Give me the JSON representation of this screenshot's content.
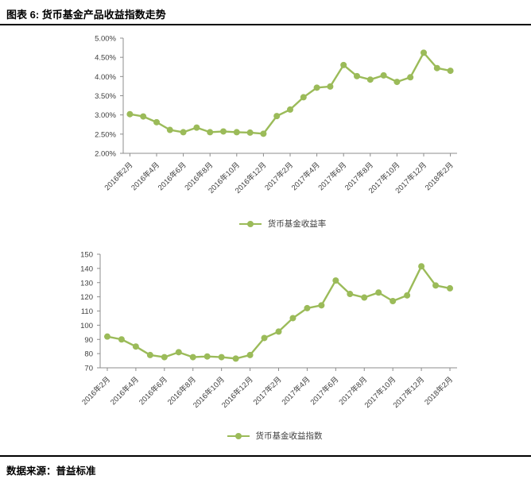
{
  "header": {
    "title": "图表 6: 货币基金产品收益指数走势"
  },
  "footer": {
    "source": "数据来源：普益标准"
  },
  "colors": {
    "line": "#9BBB59",
    "axis": "#8c8c8c",
    "tick_label": "#404040",
    "rule": "#000000"
  },
  "chart_data": [
    {
      "type": "line",
      "series_name": "货币基金收益率",
      "x": [
        "2016年2月",
        "2016年3月",
        "2016年4月",
        "2016年5月",
        "2016年6月",
        "2016年7月",
        "2016年8月",
        "2016年9月",
        "2016年10月",
        "2016年11月",
        "2016年12月",
        "2017年1月",
        "2017年2月",
        "2017年3月",
        "2017年4月",
        "2017年5月",
        "2017年6月",
        "2017年7月",
        "2017年8月",
        "2017年9月",
        "2017年10月",
        "2017年11月",
        "2017年12月",
        "2018年1月",
        "2018年2月"
      ],
      "x_label_every": 2,
      "x_tick_labels_shown": [
        "2016年2月",
        "2016年4月",
        "2016年6月",
        "2016年8月",
        "2016年10月",
        "2016年12月",
        "2017年2月",
        "2017年4月",
        "2017年6月",
        "2017年8月",
        "2017年10月",
        "2017年12月",
        "2018年2月"
      ],
      "values": [
        3.02,
        2.96,
        2.81,
        2.61,
        2.55,
        2.67,
        2.55,
        2.57,
        2.55,
        2.54,
        2.51,
        2.97,
        3.14,
        3.46,
        3.71,
        3.74,
        4.3,
        4.01,
        3.92,
        4.03,
        3.86,
        3.98,
        4.62,
        4.22,
        4.15
      ],
      "y_unit": "%",
      "ylim": [
        2.0,
        5.0
      ],
      "ytick_step": 0.5,
      "ytick_labels": [
        "2.00%",
        "2.50%",
        "3.00%",
        "3.50%",
        "4.00%",
        "4.50%",
        "5.00%"
      ],
      "y_format": "percent",
      "grid": false,
      "legend_position": "bottom"
    },
    {
      "type": "line",
      "series_name": "货币基金收益指数",
      "x": [
        "2016年2月",
        "2016年3月",
        "2016年4月",
        "2016年5月",
        "2016年6月",
        "2016年7月",
        "2016年8月",
        "2016年9月",
        "2016年10月",
        "2016年11月",
        "2016年12月",
        "2017年1月",
        "2017年2月",
        "2017年3月",
        "2017年4月",
        "2017年5月",
        "2017年6月",
        "2017年7月",
        "2017年8月",
        "2017年9月",
        "2017年10月",
        "2017年11月",
        "2017年12月",
        "2018年1月",
        "2018年2月"
      ],
      "x_label_every": 2,
      "x_tick_labels_shown": [
        "2016年2月",
        "2016年4月",
        "2016年6月",
        "2016年8月",
        "2016年10月",
        "2016年12月",
        "2017年2月",
        "2017年4月",
        "2017年6月",
        "2017年8月",
        "2017年10月",
        "2017年12月",
        "2018年2月"
      ],
      "values": [
        92,
        90,
        85,
        79,
        77.5,
        81,
        77.5,
        78,
        77.5,
        76.5,
        79,
        91,
        95.5,
        105,
        112,
        114,
        131.5,
        122,
        119.5,
        123,
        117,
        121,
        141.5,
        128,
        126
      ],
      "y_unit": "",
      "ylim": [
        70,
        150
      ],
      "ytick_step": 10,
      "ytick_labels": [
        "70",
        "80",
        "90",
        "100",
        "110",
        "120",
        "130",
        "140",
        "150"
      ],
      "y_format": "integer",
      "grid": false,
      "legend_position": "bottom"
    }
  ]
}
